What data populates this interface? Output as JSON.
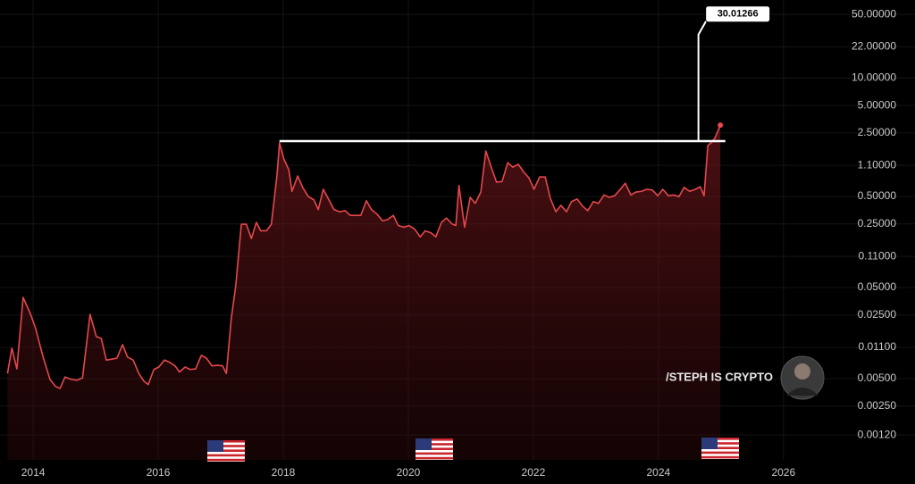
{
  "chart_data": {
    "type": "area-line",
    "x": [
      2013.59,
      2013.66,
      2013.74,
      2013.84,
      2013.96,
      2014.04,
      2014.16,
      2014.27,
      2014.36,
      2014.43,
      2014.51,
      2014.61,
      2014.7,
      2014.79,
      2014.91,
      2015.01,
      2015.09,
      2015.17,
      2015.27,
      2015.34,
      2015.43,
      2015.51,
      2015.6,
      2015.69,
      2015.77,
      2015.84,
      2015.93,
      2016.01,
      2016.1,
      2016.19,
      2016.27,
      2016.34,
      2016.43,
      2016.51,
      2016.6,
      2016.69,
      2016.77,
      2016.86,
      2016.94,
      2017.03,
      2017.09,
      2017.17,
      2017.24,
      2017.33,
      2017.41,
      2017.49,
      2017.57,
      2017.64,
      2017.73,
      2017.81,
      2017.9,
      2017.94,
      2018.01,
      2018.09,
      2018.14,
      2018.23,
      2018.31,
      2018.4,
      2018.49,
      2018.56,
      2018.64,
      2018.73,
      2018.81,
      2018.9,
      2018.99,
      2019.07,
      2019.16,
      2019.24,
      2019.33,
      2019.41,
      2019.5,
      2019.59,
      2019.67,
      2019.76,
      2019.84,
      2019.93,
      2020.01,
      2020.1,
      2020.19,
      2020.27,
      2020.36,
      2020.44,
      2020.53,
      2020.61,
      2020.7,
      2020.76,
      2020.81,
      2020.9,
      2020.99,
      2021.07,
      2021.16,
      2021.24,
      2021.33,
      2021.41,
      2021.5,
      2021.59,
      2021.67,
      2021.76,
      2021.84,
      2021.93,
      2022.01,
      2022.1,
      2022.19,
      2022.27,
      2022.36,
      2022.44,
      2022.53,
      2022.61,
      2022.7,
      2022.79,
      2022.87,
      2022.96,
      2023.04,
      2023.13,
      2023.21,
      2023.3,
      2023.39,
      2023.47,
      2023.56,
      2023.64,
      2023.73,
      2023.81,
      2023.9,
      2023.99,
      2024.07,
      2024.16,
      2024.24,
      2024.33,
      2024.41,
      2024.5,
      2024.59,
      2024.67,
      2024.73,
      2024.79,
      2024.84,
      2024.9,
      2024.99
    ],
    "values": [
      0.0057,
      0.0108,
      0.0064,
      0.039,
      0.0254,
      0.0177,
      0.0086,
      0.0049,
      0.0041,
      0.0039,
      0.0052,
      0.0049,
      0.0048,
      0.0051,
      0.0254,
      0.0145,
      0.0138,
      0.008,
      0.0082,
      0.0084,
      0.0118,
      0.0086,
      0.008,
      0.0057,
      0.0047,
      0.0043,
      0.0063,
      0.0067,
      0.008,
      0.0075,
      0.0069,
      0.0059,
      0.0067,
      0.0063,
      0.0064,
      0.009,
      0.0084,
      0.0069,
      0.007,
      0.0069,
      0.0057,
      0.0232,
      0.052,
      0.248,
      0.248,
      0.173,
      0.26,
      0.21,
      0.21,
      0.248,
      0.86,
      1.94,
      1.29,
      0.98,
      0.57,
      0.84,
      0.63,
      0.5,
      0.46,
      0.36,
      0.6,
      0.46,
      0.36,
      0.34,
      0.35,
      0.31,
      0.31,
      0.31,
      0.45,
      0.36,
      0.32,
      0.27,
      0.28,
      0.31,
      0.24,
      0.23,
      0.24,
      0.22,
      0.18,
      0.21,
      0.2,
      0.18,
      0.26,
      0.29,
      0.25,
      0.24,
      0.66,
      0.23,
      0.49,
      0.42,
      0.56,
      1.58,
      1.03,
      0.72,
      0.73,
      1.18,
      1.05,
      1.13,
      0.94,
      0.8,
      0.6,
      0.82,
      0.82,
      0.48,
      0.34,
      0.4,
      0.34,
      0.44,
      0.47,
      0.39,
      0.35,
      0.44,
      0.42,
      0.52,
      0.49,
      0.51,
      0.6,
      0.7,
      0.52,
      0.56,
      0.57,
      0.6,
      0.59,
      0.51,
      0.6,
      0.51,
      0.52,
      0.5,
      0.63,
      0.57,
      0.6,
      0.64,
      0.51,
      1.81,
      1.94,
      2.17,
      3.04
    ],
    "color": "#e5484d",
    "log_scale": true,
    "grid": true,
    "xlim": [
      2013.47,
      2026.76
    ],
    "xticks": [
      2014,
      2016,
      2018,
      2020,
      2022,
      2024,
      2026
    ],
    "ylim": [
      0.00064,
      72
    ],
    "yticks": [
      {
        "value": 50,
        "label": "50.00000"
      },
      {
        "value": 22,
        "label": "22.00000"
      },
      {
        "value": 10,
        "label": "10.00000"
      },
      {
        "value": 5,
        "label": "5.00000"
      },
      {
        "value": 2.5,
        "label": "2.50000"
      },
      {
        "value": 1.1,
        "label": "1.10000"
      },
      {
        "value": 0.5,
        "label": "0.50000"
      },
      {
        "value": 0.25,
        "label": "0.25000"
      },
      {
        "value": 0.11,
        "label": "0.11000"
      },
      {
        "value": 0.05,
        "label": "0.05000"
      },
      {
        "value": 0.025,
        "label": "0.02500"
      },
      {
        "value": 0.011,
        "label": "0.01100"
      },
      {
        "value": 0.005,
        "label": "0.00500"
      },
      {
        "value": 0.0025,
        "label": "0.00250"
      },
      {
        "value": 0.0012,
        "label": "0.00120"
      }
    ],
    "level": {
      "value": 2.03,
      "x": [
        2017.94,
        2025.07
      ]
    },
    "target": {
      "value": 30.01266,
      "x": 2024.64
    },
    "watermark": "/STEPH IS CRYPTO"
  }
}
